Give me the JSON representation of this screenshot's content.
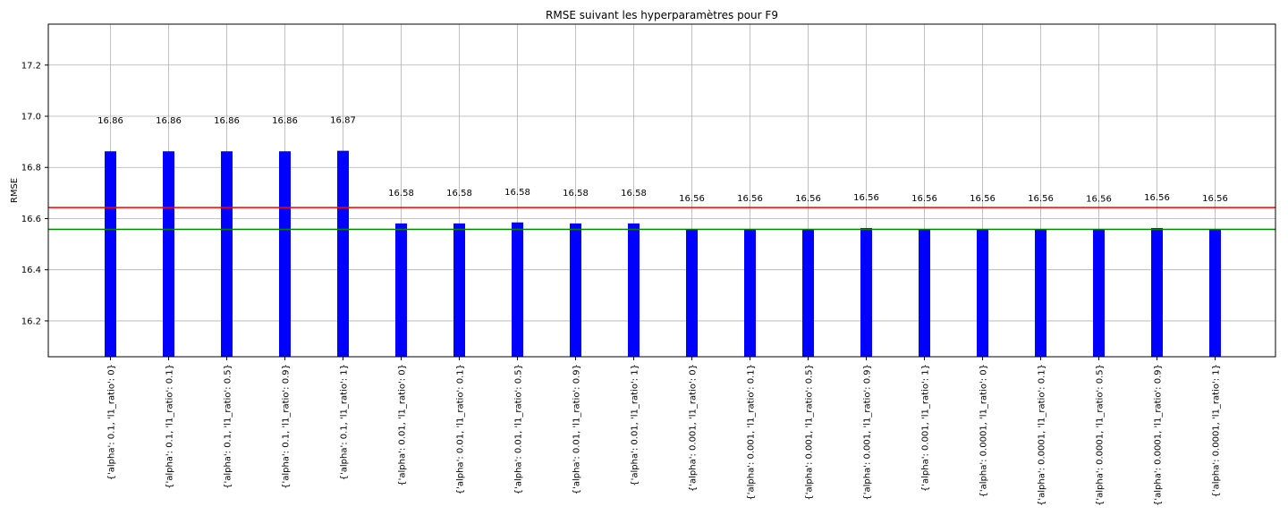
{
  "chart_data": {
    "type": "bar",
    "title": "RMSE suivant les hyperparamètres pour F9",
    "xlabel": "",
    "ylabel": "RMSE",
    "ylim": [
      16.06,
      17.36
    ],
    "yticks": [
      16.2,
      16.4,
      16.6,
      16.8,
      17.0,
      17.2
    ],
    "grid": true,
    "bar_color": "#0000ff",
    "categories": [
      "{'alpha': 0.1, 'l1_ratio': 0}",
      "{'alpha': 0.1, 'l1_ratio': 0.1}",
      "{'alpha': 0.1, 'l1_ratio': 0.5}",
      "{'alpha': 0.1, 'l1_ratio': 0.9}",
      "{'alpha': 0.1, 'l1_ratio': 1}",
      "{'alpha': 0.01, 'l1_ratio': 0}",
      "{'alpha': 0.01, 'l1_ratio': 0.1}",
      "{'alpha': 0.01, 'l1_ratio': 0.5}",
      "{'alpha': 0.01, 'l1_ratio': 0.9}",
      "{'alpha': 0.01, 'l1_ratio': 1}",
      "{'alpha': 0.001, 'l1_ratio': 0}",
      "{'alpha': 0.001, 'l1_ratio': 0.1}",
      "{'alpha': 0.001, 'l1_ratio': 0.5}",
      "{'alpha': 0.001, 'l1_ratio': 0.9}",
      "{'alpha': 0.001, 'l1_ratio': 1}",
      "{'alpha': 0.0001, 'l1_ratio': 0}",
      "{'alpha': 0.0001, 'l1_ratio': 0.1}",
      "{'alpha': 0.0001, 'l1_ratio': 0.5}",
      "{'alpha': 0.0001, 'l1_ratio': 0.9}",
      "{'alpha': 0.0001, 'l1_ratio': 1}"
    ],
    "values": [
      16.863,
      16.863,
      16.863,
      16.863,
      16.865,
      16.581,
      16.581,
      16.585,
      16.581,
      16.581,
      16.559,
      16.559,
      16.559,
      16.563,
      16.559,
      16.559,
      16.559,
      16.558,
      16.563,
      16.559
    ],
    "value_labels": [
      "16.86",
      "16.86",
      "16.86",
      "16.86",
      "16.87",
      "16.58",
      "16.58",
      "16.58",
      "16.58",
      "16.58",
      "16.56",
      "16.56",
      "16.56",
      "16.56",
      "16.56",
      "16.56",
      "16.56",
      "16.56",
      "16.56",
      "16.56"
    ],
    "hlines": [
      {
        "y": 16.643,
        "color": "#ff0000"
      },
      {
        "y": 16.558,
        "color": "#008000"
      }
    ]
  }
}
